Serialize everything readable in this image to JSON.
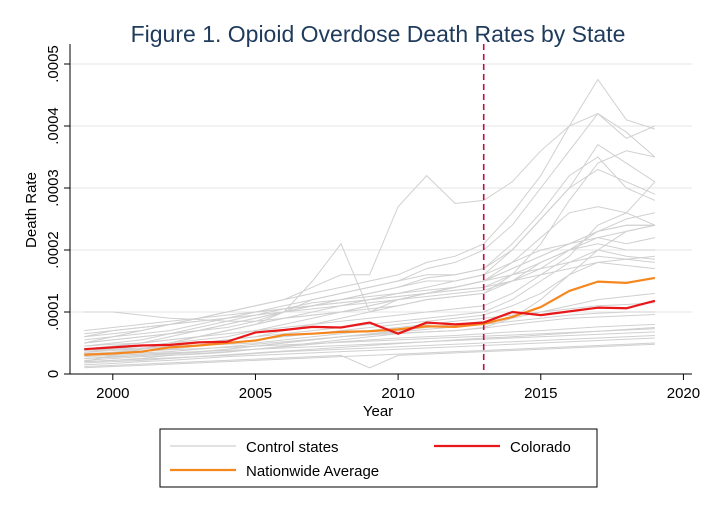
{
  "chart_data": {
    "type": "line",
    "title": "Figure 1. Opioid Overdose Death Rates by State",
    "xlabel": "Year",
    "ylabel": "Death Rate",
    "xlim": [
      1998.5,
      2020.3
    ],
    "ylim": [
      0,
      0.0005
    ],
    "xticks": [
      2000,
      2005,
      2010,
      2015,
      2020
    ],
    "xtick_labels": [
      "2000",
      "2005",
      "2010",
      "2015",
      "2020"
    ],
    "yticks": [
      0,
      0.0001,
      0.0002,
      0.0003,
      0.0004,
      0.0005
    ],
    "ytick_labels": [
      "0",
      ".0001",
      ".0002",
      ".0003",
      ".0004",
      ".0005"
    ],
    "grid": true,
    "legend_position": "bottom",
    "colors": {
      "control": "#d0d0d0",
      "colorado": "#e8171a",
      "nationwide": "#f5871f",
      "vline": "#c01040",
      "title": "#1f3b5c"
    },
    "reference_line": {
      "x": 2013,
      "style": "dashed"
    },
    "legend": {
      "control": "Control states",
      "colorado": "Colorado",
      "nationwide": "Nationwide Average"
    },
    "x": [
      1999,
      2000,
      2001,
      2002,
      2003,
      2004,
      2005,
      2006,
      2007,
      2008,
      2009,
      2010,
      2011,
      2012,
      2013,
      2014,
      2015,
      2016,
      2017,
      2018,
      2019
    ],
    "series": [
      {
        "name": "Colorado",
        "values": [
          4e-05,
          4.3e-05,
          4.6e-05,
          4.7e-05,
          5.1e-05,
          5.2e-05,
          6.7e-05,
          7.1e-05,
          7.6e-05,
          7.5e-05,
          8.3e-05,
          6.5e-05,
          8.3e-05,
          8e-05,
          8.3e-05,
          0.0001,
          9.5e-05,
          0.000101,
          0.000107,
          0.000106,
          0.000118
        ]
      },
      {
        "name": "Nationwide Average",
        "values": [
          3.1e-05,
          3.3e-05,
          3.6e-05,
          4.3e-05,
          4.6e-05,
          5e-05,
          5.4e-05,
          6.3e-05,
          6.5e-05,
          6.8e-05,
          6.9e-05,
          7.2e-05,
          7.7e-05,
          7.6e-05,
          8.1e-05,
          9.2e-05,
          0.000108,
          0.000134,
          0.000149,
          0.000147,
          0.000155
        ]
      }
    ],
    "control_series": [
      [
        2e-05,
        2.2e-05,
        2.5e-05,
        3e-05,
        3.2e-05,
        3.5e-05,
        4e-05,
        4.5e-05,
        5e-05,
        5.5e-05,
        6e-05,
        6.5e-05,
        6.8e-05,
        7e-05,
        7.5e-05,
        9e-05,
        0.00012,
        0.00016,
        0.0002,
        0.00023,
        0.00024
      ],
      [
        3e-05,
        3.5e-05,
        4e-05,
        4.5e-05,
        5e-05,
        5.5e-05,
        6e-05,
        7e-05,
        8e-05,
        9e-05,
        0.0001,
        0.00011,
        0.00012,
        0.000125,
        0.00013,
        0.00016,
        0.00021,
        0.00028,
        0.00034,
        0.00036,
        0.00035
      ],
      [
        4e-05,
        4.5e-05,
        5e-05,
        6e-05,
        7e-05,
        8e-05,
        9e-05,
        0.0001,
        0.00011,
        0.00012,
        0.00013,
        0.00014,
        0.00015,
        0.00015,
        0.00016,
        0.0002,
        0.00025,
        0.0003,
        0.00037,
        0.00034,
        0.00031
      ],
      [
        5e-05,
        5.5e-05,
        6e-05,
        6.5e-05,
        7e-05,
        7.5e-05,
        8.5e-05,
        0.0001,
        0.00012,
        0.00013,
        0.00014,
        0.00015,
        0.00017,
        0.00018,
        0.0002,
        0.00024,
        0.0003,
        0.00036,
        0.00042,
        0.00038,
        0.0004
      ],
      [
        6e-05,
        6.5e-05,
        7e-05,
        8e-05,
        9e-05,
        0.0001,
        0.00011,
        0.00012,
        0.00013,
        0.00014,
        0.00015,
        0.00016,
        0.00018,
        0.00019,
        0.00021,
        0.00026,
        0.00032,
        0.0004,
        0.000475,
        0.00041,
        0.000395
      ],
      [
        2.5e-05,
        2.8e-05,
        3e-05,
        3.2e-05,
        3.5e-05,
        4e-05,
        4.5e-05,
        5e-05,
        5.5e-05,
        6e-05,
        6.3e-05,
        6.6e-05,
        6.8e-05,
        7e-05,
        7.4e-05,
        8e-05,
        8.5e-05,
        9e-05,
        9.2e-05,
        9.4e-05,
        9.6e-05
      ],
      [
        1.5e-05,
        1.7e-05,
        2e-05,
        2.2e-05,
        2.5e-05,
        2.8e-05,
        3e-05,
        3.2e-05,
        3.4e-05,
        3.6e-05,
        3.8e-05,
        4e-05,
        4.2e-05,
        4.4e-05,
        4.6e-05,
        4.8e-05,
        5e-05,
        5.2e-05,
        5.4e-05,
        5.6e-05,
        5.8e-05
      ],
      [
        3.5e-05,
        3.8e-05,
        4e-05,
        4.5e-05,
        5e-05,
        5.5e-05,
        6e-05,
        6.5e-05,
        7e-05,
        7.5e-05,
        8e-05,
        8.5e-05,
        9e-05,
        9.5e-05,
        0.0001,
        0.00012,
        0.00015,
        0.00018,
        0.0002,
        0.00019,
        0.000185
      ],
      [
        4.5e-05,
        5e-05,
        5.5e-05,
        6.5e-05,
        7.5e-05,
        8.5e-05,
        9.5e-05,
        0.000105,
        0.000115,
        0.00012,
        0.000125,
        0.00013,
        0.000135,
        0.00014,
        0.00015,
        0.00018,
        0.00022,
        0.00026,
        0.00027,
        0.00026,
        0.00024
      ],
      [
        2e-05,
        2.2e-05,
        2.4e-05,
        2.6e-05,
        2.8e-05,
        3e-05,
        3.3e-05,
        3.6e-05,
        3.8e-05,
        4e-05,
        4.2e-05,
        4.4e-05,
        4.6e-05,
        4.8e-05,
        5e-05,
        5.2e-05,
        5.4e-05,
        5.6e-05,
        5.8e-05,
        6e-05,
        6.2e-05
      ],
      [
        3e-05,
        3.3e-05,
        3.6e-05,
        4e-05,
        4.5e-05,
        5e-05,
        5.5e-05,
        6e-05,
        6.5e-05,
        7e-05,
        7.5e-05,
        8e-05,
        8.5e-05,
        9e-05,
        9.5e-05,
        0.00011,
        0.00013,
        0.00016,
        0.00018,
        0.000175,
        0.00017
      ],
      [
        5.5e-05,
        6e-05,
        6.5e-05,
        7e-05,
        8e-05,
        9e-05,
        0.0001,
        0.00011,
        0.00012,
        0.00013,
        0.00014,
        0.00015,
        0.00016,
        0.00016,
        0.00017,
        0.00021,
        0.00026,
        0.00032,
        0.00035,
        0.0003,
        0.00028
      ],
      [
        4e-05,
        4e-05,
        4e-05,
        5e-05,
        6e-05,
        7e-05,
        8e-05,
        9e-05,
        0.0001,
        0.00011,
        0.00012,
        0.00013,
        0.00014,
        0.00015,
        0.00016,
        0.00018,
        0.0002,
        0.00021,
        0.00022,
        0.00021,
        0.00022
      ],
      [
        1e-05,
        1.2e-05,
        1.4e-05,
        1.6e-05,
        1.8e-05,
        2e-05,
        2.2e-05,
        2.4e-05,
        2.6e-05,
        2.8e-05,
        3e-05,
        3.2e-05,
        3.4e-05,
        3.6e-05,
        3.8e-05,
        4e-05,
        4.2e-05,
        4.4e-05,
        4.6e-05,
        4.8e-05,
        5e-05
      ],
      [
        3.5e-05,
        4e-05,
        4.5e-05,
        5e-05,
        5.5e-05,
        6e-05,
        7e-05,
        8e-05,
        9e-05,
        0.0001,
        0.00011,
        0.00012,
        0.00013,
        0.00014,
        0.00015,
        0.00017,
        0.00019,
        0.00021,
        0.00023,
        0.00024,
        0.00024
      ],
      [
        6e-05,
        7e-05,
        7.5e-05,
        8e-05,
        8.5e-05,
        9e-05,
        0.0001,
        0.000105,
        0.00011,
        0.000115,
        0.00012,
        0.000125,
        0.00013,
        0.000135,
        0.00014,
        0.00015,
        0.00016,
        0.00017,
        0.00018,
        0.000185,
        0.00019
      ],
      [
        2.2e-05,
        2.5e-05,
        2.8e-05,
        3e-05,
        3.3e-05,
        3.6e-05,
        4e-05,
        4.4e-05,
        4.8e-05,
        5.2e-05,
        5.5e-05,
        5.8e-05,
        6e-05,
        6.2e-05,
        6.5e-05,
        6.8e-05,
        7e-05,
        7.3e-05,
        7.6e-05,
        7.8e-05,
        8e-05
      ],
      [
        5e-05,
        5.5e-05,
        6e-05,
        6.5e-05,
        7e-05,
        8e-05,
        9e-05,
        0.0001,
        0.00011,
        0.00012,
        0.00013,
        0.00014,
        0.000155,
        0.00016,
        0.00017,
        0.0002,
        0.00025,
        0.0003,
        0.00033,
        0.00031,
        0.00029
      ],
      [
        3e-05,
        3.2e-05,
        3.4e-05,
        3.6e-05,
        4e-05,
        4.4e-05,
        4.8e-05,
        5.2e-05,
        5.6e-05,
        6e-05,
        6.4e-05,
        6.8e-05,
        7.2e-05,
        7.6e-05,
        8e-05,
        8.5e-05,
        9e-05,
        9.5e-05,
        9.8e-05,
        0.0001,
        0.0001
      ],
      [
        4e-05,
        4.5e-05,
        5e-05,
        5.5e-05,
        6e-05,
        7e-05,
        8e-05,
        9e-05,
        9.5e-05,
        0.0001,
        0.000105,
        0.00011,
        0.00012,
        0.000125,
        0.00013,
        0.00015,
        0.00018,
        0.0002,
        0.00021,
        0.0002,
        0.0002
      ],
      [
        7e-05,
        7.5e-05,
        8e-05,
        8.5e-05,
        9e-05,
        9.5e-05,
        0.0001,
        0.000105,
        0.00011,
        0.000115,
        0.00012,
        0.000125,
        0.00013,
        0.000135,
        0.00014,
        0.00016,
        0.00018,
        0.0002,
        0.00022,
        0.00023,
        0.00024
      ],
      [
        5e-05,
        6e-05,
        7e-05,
        8e-05,
        9e-05,
        0.0001,
        0.00011,
        0.00012,
        0.00014,
        0.00016,
        0.00016,
        0.00027,
        0.00032,
        0.000275,
        0.00028,
        0.00031,
        0.00036,
        0.0004,
        0.00042,
        0.00039,
        0.00035
      ],
      [
        2e-05,
        3e-05,
        4e-05,
        5e-05,
        6e-05,
        7e-05,
        8e-05,
        0.0001,
        0.00015,
        0.00021,
        0.0001,
        0.00012,
        0.00013,
        0.00014,
        0.00015,
        0.00016,
        0.00017,
        0.00018,
        0.00019,
        0.000185,
        0.00018
      ],
      [
        1.8e-05,
        2e-05,
        2.2e-05,
        2.5e-05,
        2.8e-05,
        3.1e-05,
        3.4e-05,
        3.7e-05,
        4e-05,
        4.3e-05,
        4.6e-05,
        4.9e-05,
        5.2e-05,
        5.5e-05,
        5.8e-05,
        6e-05,
        6.3e-05,
        6.6e-05,
        6.9e-05,
        7.2e-05,
        7.5e-05
      ],
      [
        2.8e-05,
        3e-05,
        3.2e-05,
        3.4e-05,
        3.6e-05,
        3.8e-05,
        4e-05,
        4.2e-05,
        4.4e-05,
        4.6e-05,
        4.8e-05,
        5e-05,
        5.2e-05,
        5.4e-05,
        5.6e-05,
        5.8e-05,
        6e-05,
        6.2e-05,
        6.4e-05,
        6.6e-05,
        6.8e-05
      ],
      [
        3.8e-05,
        4e-05,
        4.2e-05,
        4.4e-05,
        4.6e-05,
        4.8e-05,
        5e-05,
        5.5e-05,
        6e-05,
        6.5e-05,
        7e-05,
        7.5e-05,
        8e-05,
        8.5e-05,
        9e-05,
        9.5e-05,
        0.0001,
        0.000105,
        0.00011,
        0.000112,
        0.000115
      ],
      [
        1.2e-05,
        1.4e-05,
        1.6e-05,
        1.8e-05,
        2e-05,
        2.2e-05,
        2.4e-05,
        2.6e-05,
        2.8e-05,
        3e-05,
        1e-05,
        3e-05,
        3.2e-05,
        3.4e-05,
        3.6e-05,
        3.8e-05,
        4e-05,
        4.2e-05,
        4.4e-05,
        4.6e-05,
        4.8e-05
      ],
      [
        6.5e-05,
        7e-05,
        7.5e-05,
        8e-05,
        8.5e-05,
        9e-05,
        9.5e-05,
        0.0001,
        0.000105,
        0.00011,
        0.000115,
        0.00012,
        0.000125,
        0.00013,
        0.000135,
        0.00015,
        0.00017,
        0.0002,
        0.00023,
        0.00024,
        0.00024
      ],
      [
        4.5e-05,
        4.8e-05,
        5e-05,
        5.5e-05,
        6e-05,
        6.5e-05,
        7e-05,
        7.5e-05,
        8e-05,
        8.5e-05,
        9e-05,
        9.5e-05,
        0.0001,
        0.000105,
        0.00011,
        0.00013,
        0.00016,
        0.00019,
        0.00024,
        0.00026,
        0.00031
      ],
      [
        3.3e-05,
        3.5e-05,
        3.7e-05,
        3.9e-05,
        4.1e-05,
        4.3e-05,
        4.5e-05,
        4.7e-05,
        4.9e-05,
        5.1e-05,
        5.3e-05,
        5.5e-05,
        5.7e-05,
        5.9e-05,
        6.1e-05,
        6.3e-05,
        6.5e-05,
        6.7e-05,
        6.9e-05,
        7.1e-05,
        7.3e-05
      ],
      [
        0.0001,
        0.0001,
        9.5e-05,
        9e-05,
        8.8e-05,
        8.5e-05,
        8.5e-05,
        9e-05,
        9.5e-05,
        0.0001,
        0.00011,
        0.00012,
        0.00013,
        0.00014,
        0.00015,
        0.00017,
        0.00019,
        0.00021,
        0.00023,
        0.00025,
        0.00026
      ],
      [
        2.5e-05,
        2.7e-05,
        3e-05,
        3.3e-05,
        3.6e-05,
        4e-05,
        4.5e-05,
        5e-05,
        5.5e-05,
        6e-05,
        6.5e-05,
        7e-05,
        7.5e-05,
        8e-05,
        8.5e-05,
        9e-05,
        0.0001,
        0.00011,
        0.00012,
        0.000125,
        0.00013
      ]
    ]
  }
}
